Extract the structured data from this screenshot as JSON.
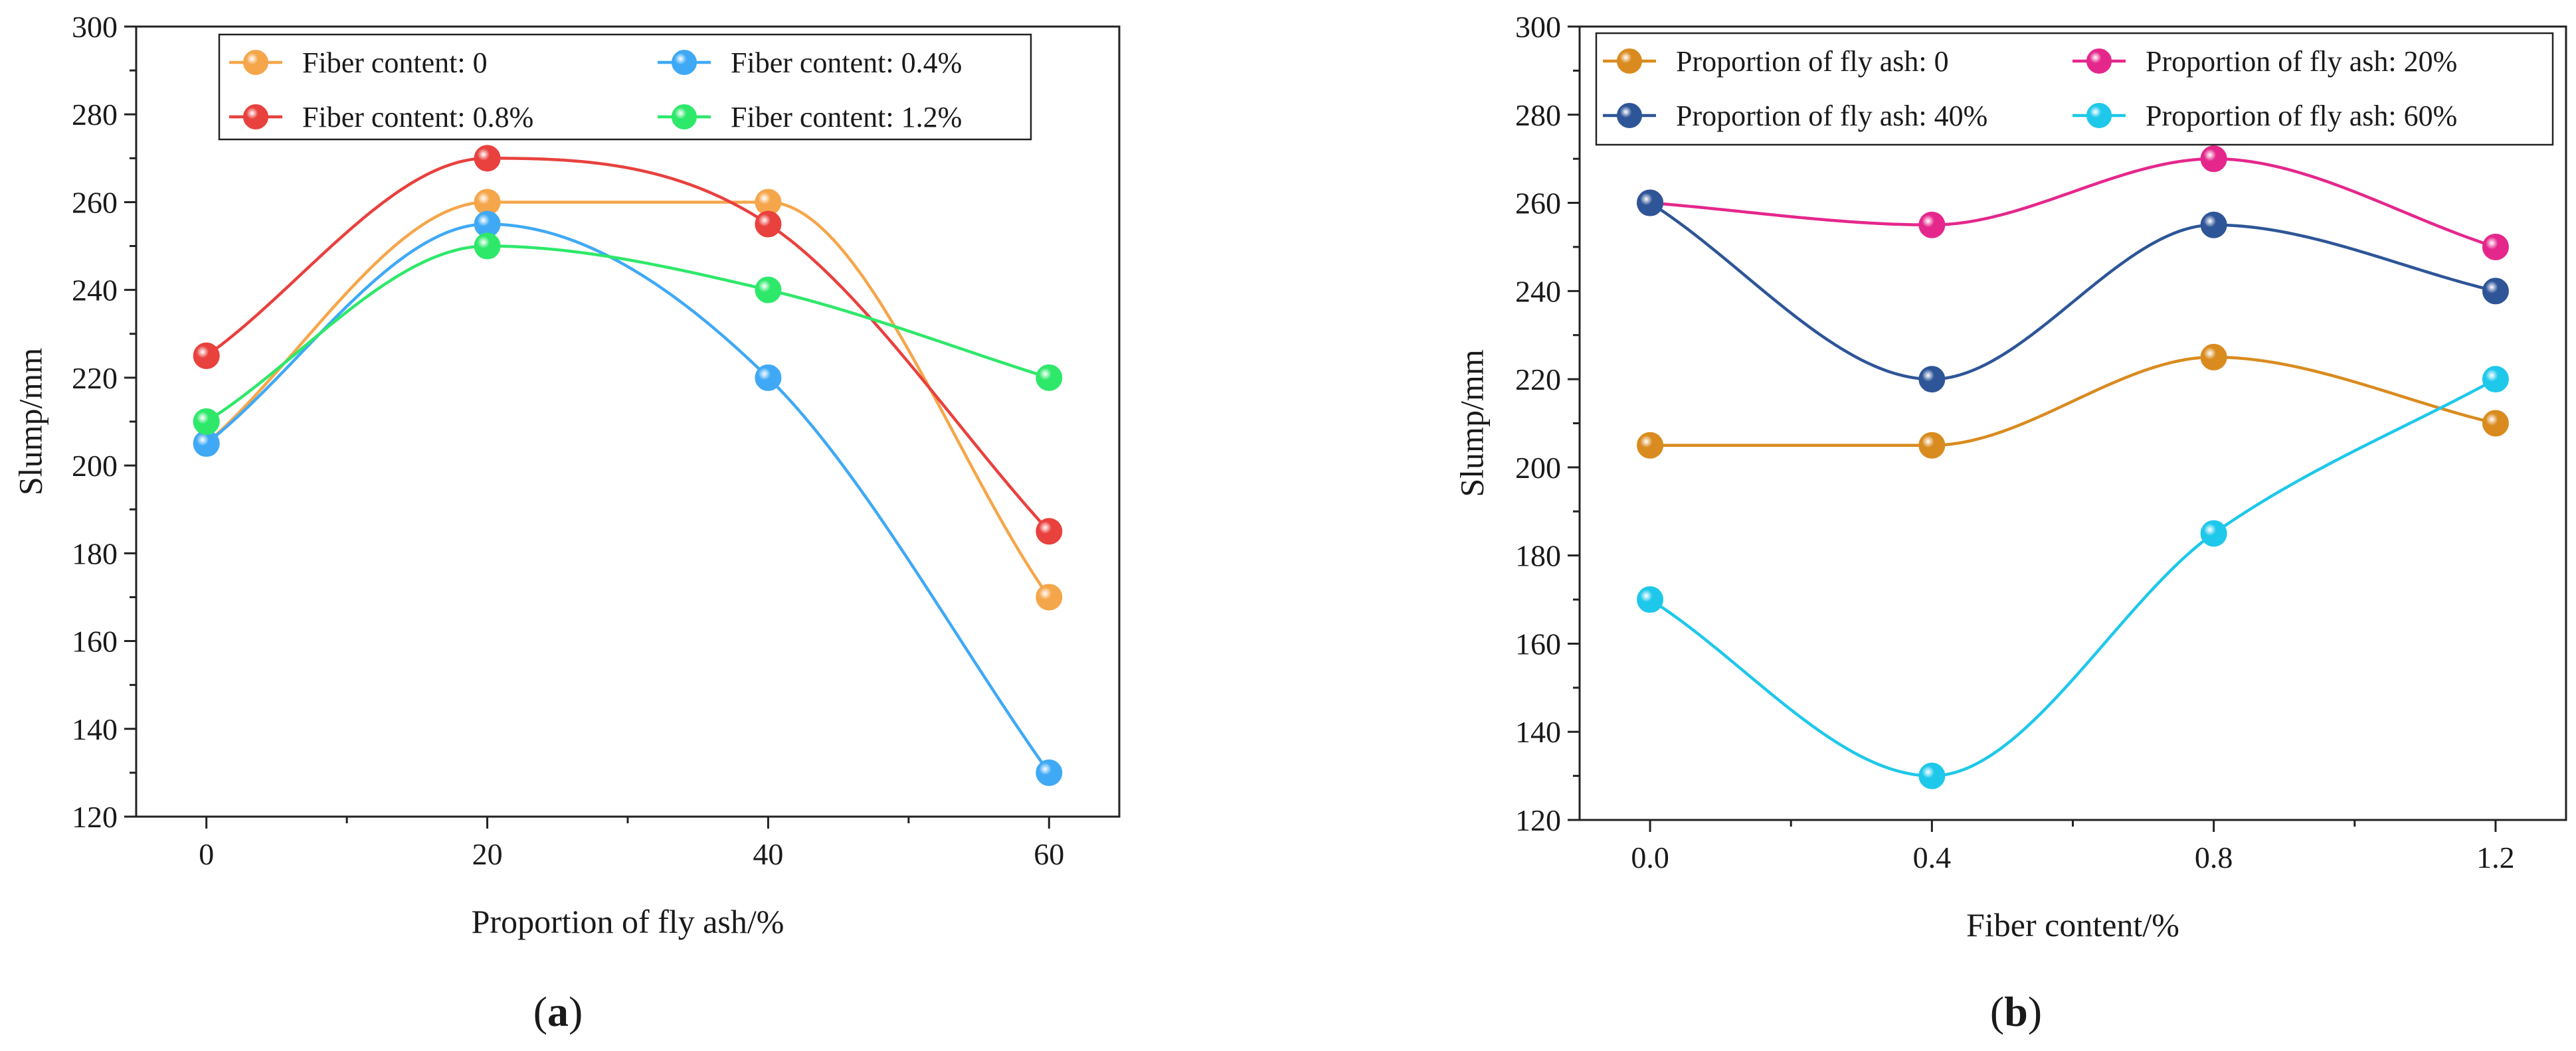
{
  "panels": [
    {
      "label_prefix": "(",
      "label_letter": "a",
      "label_suffix": ")"
    },
    {
      "label_prefix": "(",
      "label_letter": "b",
      "label_suffix": ")"
    }
  ],
  "chart_data": [
    {
      "type": "line",
      "xlabel": "Proportion of fly ash/%",
      "ylabel": "Slump/mm",
      "x": [
        0,
        20,
        40,
        60
      ],
      "x_tick_labels": [
        "0",
        "20",
        "40",
        "60"
      ],
      "xlim": [
        -5,
        65
      ],
      "ylim": [
        120,
        300
      ],
      "y_ticks": [
        120,
        140,
        160,
        180,
        200,
        220,
        240,
        260,
        280,
        300
      ],
      "grid": false,
      "legend_position": "top-center",
      "series": [
        {
          "name": "Fiber content: 0",
          "color": "#F5A64A",
          "values": [
            205,
            260,
            260,
            170
          ]
        },
        {
          "name": "Fiber content: 0.4%",
          "color": "#3FA9F5",
          "values": [
            205,
            255,
            220,
            130
          ]
        },
        {
          "name": "Fiber content: 0.8%",
          "color": "#E8413E",
          "values": [
            225,
            270,
            255,
            185
          ]
        },
        {
          "name": "Fiber content: 1.2%",
          "color": "#2EE86A",
          "values": [
            210,
            250,
            240,
            220
          ]
        }
      ]
    },
    {
      "type": "line",
      "xlabel": "Fiber content/%",
      "ylabel": "Slump/mm",
      "x": [
        0.0,
        0.4,
        0.8,
        1.2
      ],
      "x_tick_labels": [
        "0.0",
        "0.4",
        "0.8",
        "1.2"
      ],
      "xlim": [
        -0.1,
        1.3
      ],
      "ylim": [
        120,
        300
      ],
      "y_ticks": [
        120,
        140,
        160,
        180,
        200,
        220,
        240,
        260,
        280,
        300
      ],
      "grid": false,
      "legend_position": "top",
      "series": [
        {
          "name": "Proportion of fly ash: 0",
          "color": "#D98B1F",
          "values": [
            205,
            205,
            225,
            210
          ]
        },
        {
          "name": "Proportion of fly ash: 20%",
          "color": "#E5278C",
          "values": [
            260,
            255,
            270,
            250
          ]
        },
        {
          "name": "Proportion of fly ash: 40%",
          "color": "#2E5597",
          "values": [
            260,
            220,
            255,
            240
          ]
        },
        {
          "name": "Proportion of fly ash: 60%",
          "color": "#1EC8EA",
          "values": [
            170,
            130,
            185,
            220
          ]
        }
      ]
    }
  ]
}
